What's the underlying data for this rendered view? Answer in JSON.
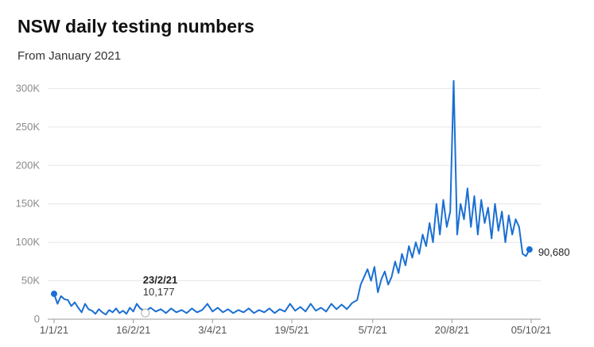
{
  "title": "NSW daily testing numbers",
  "subtitle": "From January 2021",
  "colors": {
    "line": "#1a6fd4",
    "grid": "#e6e6e6",
    "axis": "#999999"
  },
  "chart_data": {
    "type": "line",
    "title": "NSW daily testing numbers",
    "subtitle": "From January 2021",
    "xlabel": "",
    "ylabel": "",
    "grid": true,
    "ylim": [
      0,
      320000
    ],
    "y_ticks": [
      0,
      50000,
      100000,
      150000,
      200000,
      250000,
      300000
    ],
    "y_tick_labels": [
      "0",
      "50K",
      "100K",
      "150K",
      "200K",
      "250K",
      "300K"
    ],
    "x_ticks": [
      "2021-01-01",
      "2021-02-16",
      "2021-04-03",
      "2021-05-19",
      "2021-07-05",
      "2021-08-20",
      "2021-10-05"
    ],
    "x_tick_labels": [
      "1/1/21",
      "16/2/21",
      "3/4/21",
      "19/5/21",
      "5/7/21",
      "20/8/21",
      "05/10/21"
    ],
    "annotation": {
      "date": "2021-02-23",
      "date_label": "23/2/21",
      "value": 10177,
      "value_label": "10,177"
    },
    "end_label": "90,680",
    "series": [
      {
        "points": [
          [
            "2021-01-01",
            33000
          ],
          [
            "2021-01-03",
            20000
          ],
          [
            "2021-01-05",
            30000
          ],
          [
            "2021-01-07",
            26000
          ],
          [
            "2021-01-09",
            25000
          ],
          [
            "2021-01-11",
            17000
          ],
          [
            "2021-01-13",
            22000
          ],
          [
            "2021-01-15",
            15000
          ],
          [
            "2021-01-17",
            9000
          ],
          [
            "2021-01-19",
            20000
          ],
          [
            "2021-01-21",
            13000
          ],
          [
            "2021-01-23",
            11000
          ],
          [
            "2021-01-25",
            7000
          ],
          [
            "2021-01-27",
            13000
          ],
          [
            "2021-01-29",
            9000
          ],
          [
            "2021-01-31",
            6000
          ],
          [
            "2021-02-02",
            12000
          ],
          [
            "2021-02-04",
            9000
          ],
          [
            "2021-02-06",
            14000
          ],
          [
            "2021-02-08",
            8000
          ],
          [
            "2021-02-10",
            11000
          ],
          [
            "2021-02-12",
            7000
          ],
          [
            "2021-02-14",
            15000
          ],
          [
            "2021-02-16",
            10000
          ],
          [
            "2021-02-18",
            20000
          ],
          [
            "2021-02-20",
            14000
          ],
          [
            "2021-02-23",
            10177
          ],
          [
            "2021-02-26",
            15000
          ],
          [
            "2021-03-01",
            10000
          ],
          [
            "2021-03-04",
            13000
          ],
          [
            "2021-03-07",
            8000
          ],
          [
            "2021-03-10",
            14000
          ],
          [
            "2021-03-13",
            9000
          ],
          [
            "2021-03-16",
            12000
          ],
          [
            "2021-03-19",
            8000
          ],
          [
            "2021-03-22",
            14000
          ],
          [
            "2021-03-25",
            9000
          ],
          [
            "2021-03-28",
            12000
          ],
          [
            "2021-03-31",
            20000
          ],
          [
            "2021-04-03",
            10000
          ],
          [
            "2021-04-06",
            15000
          ],
          [
            "2021-04-09",
            9000
          ],
          [
            "2021-04-12",
            13000
          ],
          [
            "2021-04-15",
            8000
          ],
          [
            "2021-04-18",
            12000
          ],
          [
            "2021-04-21",
            9000
          ],
          [
            "2021-04-24",
            14000
          ],
          [
            "2021-04-27",
            8000
          ],
          [
            "2021-04-30",
            12000
          ],
          [
            "2021-05-03",
            9000
          ],
          [
            "2021-05-06",
            14000
          ],
          [
            "2021-05-09",
            8000
          ],
          [
            "2021-05-12",
            13000
          ],
          [
            "2021-05-15",
            10000
          ],
          [
            "2021-05-18",
            20000
          ],
          [
            "2021-05-21",
            11000
          ],
          [
            "2021-05-24",
            16000
          ],
          [
            "2021-05-27",
            10000
          ],
          [
            "2021-05-30",
            20000
          ],
          [
            "2021-06-02",
            11000
          ],
          [
            "2021-06-05",
            15000
          ],
          [
            "2021-06-08",
            10000
          ],
          [
            "2021-06-11",
            20000
          ],
          [
            "2021-06-14",
            13000
          ],
          [
            "2021-06-17",
            19000
          ],
          [
            "2021-06-20",
            13000
          ],
          [
            "2021-06-23",
            21000
          ],
          [
            "2021-06-26",
            25000
          ],
          [
            "2021-06-28",
            45000
          ],
          [
            "2021-06-30",
            55000
          ],
          [
            "2021-07-02",
            65000
          ],
          [
            "2021-07-04",
            50000
          ],
          [
            "2021-07-06",
            68000
          ],
          [
            "2021-07-08",
            35000
          ],
          [
            "2021-07-10",
            52000
          ],
          [
            "2021-07-12",
            62000
          ],
          [
            "2021-07-14",
            45000
          ],
          [
            "2021-07-16",
            55000
          ],
          [
            "2021-07-18",
            75000
          ],
          [
            "2021-07-20",
            60000
          ],
          [
            "2021-07-22",
            85000
          ],
          [
            "2021-07-24",
            70000
          ],
          [
            "2021-07-26",
            95000
          ],
          [
            "2021-07-28",
            80000
          ],
          [
            "2021-07-30",
            100000
          ],
          [
            "2021-08-01",
            85000
          ],
          [
            "2021-08-03",
            110000
          ],
          [
            "2021-08-05",
            95000
          ],
          [
            "2021-08-07",
            125000
          ],
          [
            "2021-08-09",
            100000
          ],
          [
            "2021-08-11",
            150000
          ],
          [
            "2021-08-13",
            110000
          ],
          [
            "2021-08-15",
            155000
          ],
          [
            "2021-08-17",
            120000
          ],
          [
            "2021-08-19",
            140000
          ],
          [
            "2021-08-21",
            310000
          ],
          [
            "2021-08-23",
            110000
          ],
          [
            "2021-08-25",
            150000
          ],
          [
            "2021-08-27",
            130000
          ],
          [
            "2021-08-29",
            170000
          ],
          [
            "2021-08-31",
            120000
          ],
          [
            "2021-09-02",
            160000
          ],
          [
            "2021-09-04",
            110000
          ],
          [
            "2021-09-06",
            155000
          ],
          [
            "2021-09-08",
            125000
          ],
          [
            "2021-09-10",
            145000
          ],
          [
            "2021-09-12",
            105000
          ],
          [
            "2021-09-14",
            150000
          ],
          [
            "2021-09-16",
            115000
          ],
          [
            "2021-09-18",
            140000
          ],
          [
            "2021-09-20",
            100000
          ],
          [
            "2021-09-22",
            135000
          ],
          [
            "2021-09-24",
            110000
          ],
          [
            "2021-09-26",
            130000
          ],
          [
            "2021-09-28",
            120000
          ],
          [
            "2021-09-30",
            85000
          ],
          [
            "2021-10-02",
            82000
          ],
          [
            "2021-10-04",
            90680
          ]
        ]
      }
    ]
  }
}
